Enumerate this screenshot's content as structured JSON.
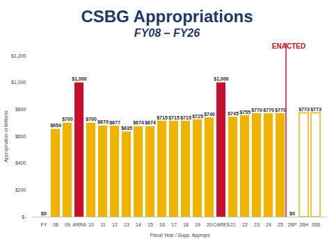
{
  "chart_data": {
    "type": "bar",
    "title": "CSBG Appropriations",
    "subtitle": "FY08 – FY26",
    "x_label": "Fiscal Year / Supp. Approps",
    "y_label": "Appropriation in Millions",
    "categories": [
      "FY",
      "08",
      "09",
      "ARRA",
      "10",
      "11",
      "12",
      "13",
      "14",
      "15",
      "16",
      "17",
      "18",
      "19",
      "20",
      "CARES",
      "21",
      "22",
      "23",
      "24",
      "25",
      "26P",
      "26H",
      "26S"
    ],
    "values": [
      0,
      654,
      700,
      1000,
      700,
      679,
      677,
      635,
      674,
      674,
      715,
      715,
      715,
      725,
      740,
      1000,
      745,
      755,
      770,
      770,
      770,
      0,
      773,
      773
    ],
    "value_labels": [
      "$0",
      "$654",
      "$700",
      "$1,000",
      "$700",
      "$679",
      "$677",
      "$635",
      "$674",
      "$674",
      "$715",
      "$715",
      "$715",
      "$725",
      "$740",
      "$1,000",
      "$745",
      "$755",
      "$770",
      "$770",
      "$770",
      "$0",
      "$773",
      "$773"
    ],
    "color": "#f0b400",
    "colors": [
      "#f0b400",
      "#f0b400",
      "#f0b400",
      "#c8102e",
      "#f0b400",
      "#f0b400",
      "#f0b400",
      "#f0b400",
      "#f0b400",
      "#f0b400",
      "#f0b400",
      "#f0b400",
      "#f0b400",
      "#f0b400",
      "#f0b400",
      "#c8102e",
      "#f0b400",
      "#f0b400",
      "#f0b400",
      "#f0b400",
      "#f0b400",
      "#f0b400",
      "#ffffff",
      "#ffffff"
    ],
    "ylim": [
      0,
      1200
    ],
    "yticks": [
      {
        "value": 0,
        "label": "$-"
      },
      {
        "value": 200,
        "label": "$200"
      },
      {
        "value": 400,
        "label": "$400"
      },
      {
        "value": 600,
        "label": "$600"
      },
      {
        "value": 800,
        "label": "$800"
      },
      {
        "value": 1000,
        "label": "$1,000"
      },
      {
        "value": 1200,
        "label": "$1,200"
      }
    ],
    "grid": false,
    "data_labels": true,
    "annotations": [
      {
        "text": "ENACTED",
        "x": "25"
      }
    ]
  }
}
